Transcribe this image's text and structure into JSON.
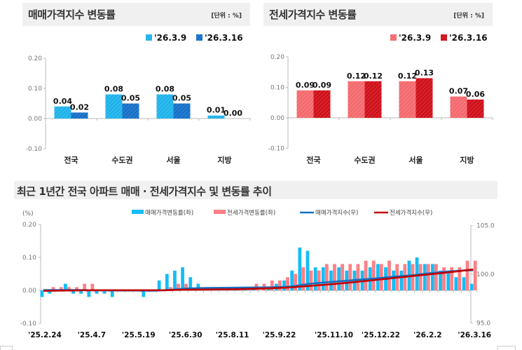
{
  "sale_panel": {
    "title": "매매가격지수 변동률",
    "unit": "[단위 : %]"
  },
  "jeonse_panel": {
    "title": "전세가격지수 변동률",
    "unit": "[단위 : %]"
  },
  "bottom_title": "최근 1년간 전국 아파트 매매 · 전세가격지수 및 변동률 추이",
  "colors": {
    "sale_prev": "#1fb3ea",
    "sale_curr": "#1670c8",
    "jeonse_prev": "#f46a6e",
    "jeonse_curr": "#d0101a",
    "sale_bar": "#16bdf5",
    "jeonse_bar": "#ff8087",
    "sale_line": "#1a6fbf",
    "jeonse_line": "#c00000"
  },
  "chart_data": [
    {
      "type": "bar",
      "categories": [
        "전국",
        "수도권",
        "서울",
        "지방"
      ],
      "series": [
        {
          "name": "'26.3.9",
          "values": [
            0.04,
            0.08,
            0.08,
            0.01
          ]
        },
        {
          "name": "'26.3.16",
          "values": [
            0.02,
            0.05,
            0.05,
            0.0
          ]
        }
      ],
      "ylim": [
        -0.1,
        0.2
      ],
      "yticks": [
        "0.20",
        "0.10",
        "0.00",
        "-0.10"
      ],
      "legend": "top-right"
    },
    {
      "type": "bar",
      "categories": [
        "전국",
        "수도권",
        "서울",
        "지방"
      ],
      "series": [
        {
          "name": "'26.3.9",
          "values": [
            0.09,
            0.12,
            0.12,
            0.07
          ]
        },
        {
          "name": "'26.3.16",
          "values": [
            0.09,
            0.12,
            0.13,
            0.06
          ]
        }
      ],
      "ylim": [
        -0.1,
        0.2
      ],
      "yticks": [
        "0.20",
        "0.10",
        "0.00",
        "-0.10"
      ],
      "legend": "top-right"
    },
    {
      "type": "bar+line",
      "ylabel": "(%)",
      "ylim": [
        -0.1,
        0.2
      ],
      "yticks": [
        "0.20",
        "0.10",
        "0.00",
        "-0.10"
      ],
      "y2lim": [
        95.0,
        105.0
      ],
      "y2ticks": [
        "105.0",
        "100.0",
        "95.0"
      ],
      "xtick_labels": [
        "'25.2.24",
        "'25.4.7",
        "'25.5.19",
        "'25.6.30",
        "'25.8.11",
        "'25.9.22",
        "'25.11.10",
        "'25.12.22",
        "'26.2.2",
        "'26.3.16"
      ],
      "xtick_weeks": [
        1,
        7,
        13,
        19,
        25,
        31,
        38,
        44,
        50,
        56
      ],
      "legend": "top",
      "series": [
        {
          "name": "매매가격변동률(좌)",
          "kind": "bar",
          "axis": "left",
          "values": [
            -0.02,
            -0.01,
            0.0,
            0.02,
            -0.01,
            -0.01,
            -0.02,
            -0.01,
            -0.01,
            -0.02,
            0.0,
            0.0,
            0.0,
            -0.02,
            0.0,
            0.03,
            0.05,
            0.06,
            0.07,
            0.04,
            0.02,
            0.01,
            0.01,
            0.01,
            0.01,
            0.01,
            0.01,
            0.01,
            0.0,
            0.01,
            0.02,
            0.03,
            0.06,
            0.13,
            0.12,
            0.07,
            0.07,
            0.06,
            0.07,
            0.06,
            0.06,
            0.06,
            0.07,
            0.08,
            0.07,
            0.06,
            0.06,
            0.09,
            0.1,
            0.08,
            0.08,
            0.06,
            0.06,
            0.04,
            0.04,
            0.02
          ]
        },
        {
          "name": "전세가격변동률(좌)",
          "kind": "bar",
          "axis": "left",
          "values": [
            0.0,
            0.01,
            0.01,
            0.01,
            0.01,
            0.02,
            0.02,
            0.0,
            0.0,
            0.0,
            0.0,
            0.0,
            0.0,
            0.0,
            0.0,
            0.0,
            0.01,
            0.02,
            0.02,
            0.0,
            0.01,
            0.01,
            0.01,
            0.01,
            0.01,
            0.01,
            0.01,
            0.02,
            0.02,
            0.03,
            0.03,
            0.04,
            0.05,
            0.07,
            0.06,
            0.06,
            0.08,
            0.08,
            0.08,
            0.08,
            0.08,
            0.09,
            0.09,
            0.08,
            0.09,
            0.08,
            0.08,
            0.08,
            0.08,
            0.08,
            0.08,
            0.07,
            0.07,
            0.07,
            0.09,
            0.09
          ]
        },
        {
          "name": "매매가격지수(우)",
          "kind": "line",
          "axis": "right",
          "values": [
            98.38,
            98.38,
            98.38,
            98.39,
            98.38,
            98.38,
            98.36,
            98.36,
            98.35,
            98.33,
            98.33,
            98.33,
            98.33,
            98.31,
            98.31,
            98.34,
            98.39,
            98.45,
            98.52,
            98.56,
            98.58,
            98.59,
            98.6,
            98.61,
            98.62,
            98.63,
            98.64,
            98.65,
            98.65,
            98.66,
            98.68,
            98.71,
            98.77,
            98.9,
            99.02,
            99.09,
            99.16,
            99.22,
            99.29,
            99.35,
            99.42,
            99.48,
            99.54,
            99.61,
            99.69,
            99.76,
            99.82,
            99.88,
            99.97,
            100.07,
            100.15,
            100.23,
            100.29,
            100.35,
            100.39,
            100.41
          ]
        },
        {
          "name": "전세가격지수(우)",
          "kind": "line",
          "axis": "right",
          "values": [
            98.3,
            98.31,
            98.32,
            98.33,
            98.34,
            98.36,
            98.36,
            98.36,
            98.36,
            98.36,
            98.36,
            98.36,
            98.36,
            98.36,
            98.36,
            98.36,
            98.37,
            98.39,
            98.41,
            98.41,
            98.42,
            98.43,
            98.44,
            98.45,
            98.46,
            98.47,
            98.49,
            98.51,
            98.53,
            98.56,
            98.59,
            98.63,
            98.67,
            98.74,
            98.8,
            98.86,
            98.92,
            98.99,
            99.06,
            99.13,
            99.21,
            99.29,
            99.37,
            99.46,
            99.54,
            99.63,
            99.71,
            99.8,
            99.88,
            99.96,
            100.04,
            100.12,
            100.21,
            100.3,
            100.4,
            100.49
          ]
        }
      ]
    }
  ]
}
